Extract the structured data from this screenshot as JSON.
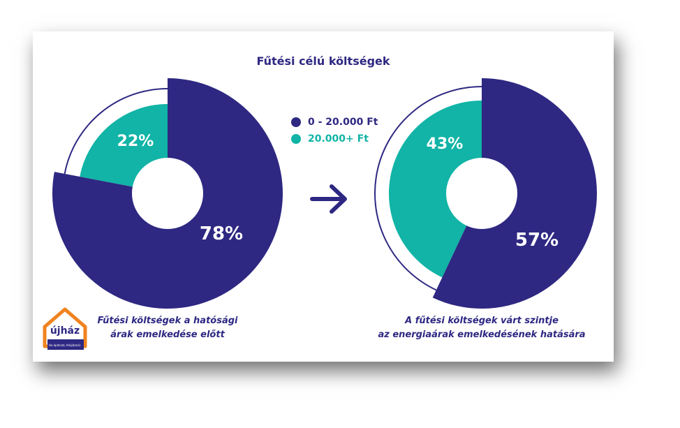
{
  "title": "Fűtési célú költségek",
  "colors": {
    "dark": "#2e2882",
    "teal": "#11b4a6",
    "text": "#2e2882"
  },
  "legend": [
    {
      "label": "0 - 20.000 Ft",
      "color": "#2e2882"
    },
    {
      "label": "20.000+ Ft",
      "color": "#11b4a6"
    }
  ],
  "arrow_icon": "arrow-right-icon",
  "chart_data": [
    {
      "type": "pie",
      "categories": [
        "0 - 20.000 Ft",
        "20.000+ Ft"
      ],
      "values": [
        78,
        22
      ],
      "labels": [
        "78%",
        "22%"
      ],
      "caption_lines": [
        "Fűtési költségek a hatósági",
        "árak emelkedése előtt"
      ]
    },
    {
      "type": "pie",
      "categories": [
        "0 - 20.000 Ft",
        "20.000+ Ft"
      ],
      "values": [
        57,
        43
      ],
      "labels": [
        "57%",
        "43%"
      ],
      "caption_lines": [
        "A fűtési költségek várt szintje",
        "az energiaárak emelkedésének hatására"
      ]
    }
  ],
  "logo": {
    "brand": "újház",
    "tagline": "Ha építeszt, felújítanál."
  }
}
